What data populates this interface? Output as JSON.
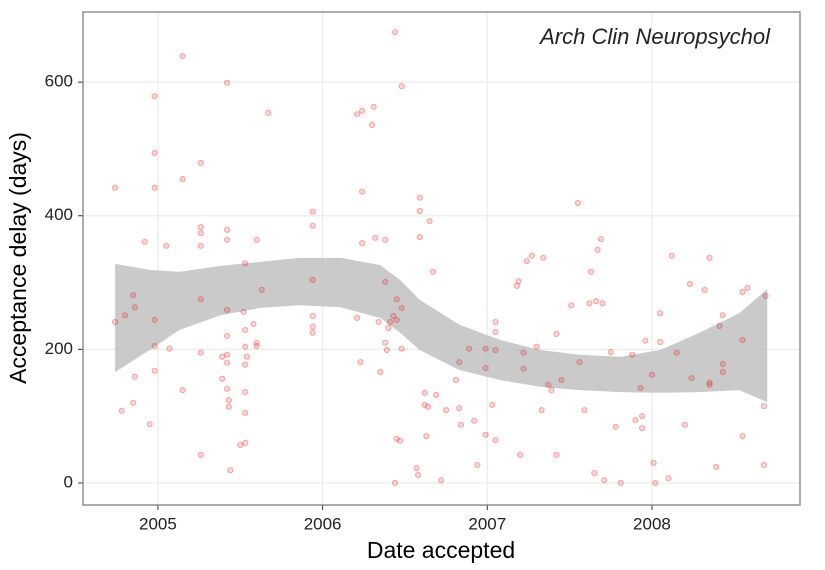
{
  "chart_data": {
    "type": "scatter",
    "annotation": "Arch Clin Neuropsychol",
    "x_label": "Date accepted",
    "y_label": "Acceptance delay (days)",
    "xlim": [
      2004.545,
      2008.899
    ],
    "ylim": [
      -33,
      705
    ],
    "xticks": [
      2005,
      2006,
      2007,
      2008
    ],
    "yticks": [
      0,
      200,
      400,
      600
    ],
    "grid": true,
    "color": "#e41a1c",
    "band_color": "#bdbdbd",
    "x": [
      2004.74,
      2004.74,
      2004.78,
      2004.8,
      2004.85,
      2004.86,
      2004.86,
      2004.85,
      2004.92,
      2004.95,
      2004.98,
      2004.98,
      2004.98,
      2004.98,
      2004.98,
      2004.98,
      2005.05,
      2005.07,
      2005.15,
      2005.15,
      2005.15,
      2005.26,
      2005.26,
      2005.26,
      2005.26,
      2005.26,
      2005.26,
      2005.26,
      2005.39,
      2005.39,
      2005.42,
      2005.42,
      2005.42,
      2005.42,
      2005.42,
      2005.42,
      2005.42,
      2005.42,
      2005.43,
      2005.43,
      2005.44,
      2005.5,
      2005.53,
      2005.52,
      2005.53,
      2005.53,
      2005.53,
      2005.53,
      2005.53,
      2005.53,
      2005.54,
      2005.58,
      2005.6,
      2005.6,
      2005.6,
      2005.63,
      2005.67,
      2005.94,
      2005.94,
      2005.94,
      2005.94,
      2005.94,
      2005.94,
      2006.21,
      2006.24,
      2006.24,
      2006.24,
      2006.21,
      2006.23,
      2006.3,
      2006.31,
      2006.32,
      2006.34,
      2006.35,
      2006.38,
      2006.38,
      2006.38,
      2006.39,
      2006.4,
      2006.41,
      2006.43,
      2006.44,
      2006.44,
      2006.45,
      2006.45,
      2006.45,
      2006.47,
      2006.48,
      2006.48,
      2006.48,
      2006.59,
      2006.59,
      2006.59,
      2006.57,
      2006.58,
      2006.62,
      2006.62,
      2006.63,
      2006.64,
      2006.65,
      2006.67,
      2006.69,
      2006.72,
      2006.75,
      2006.81,
      2006.83,
      2006.83,
      2006.84,
      2006.89,
      2006.92,
      2006.94,
      2006.99,
      2006.99,
      2006.99,
      2007.03,
      2007.05,
      2007.05,
      2007.05,
      2007.05,
      2007.18,
      2007.19,
      2007.2,
      2007.22,
      2007.22,
      2007.24,
      2007.27,
      2007.3,
      2007.33,
      2007.34,
      2007.37,
      2007.39,
      2007.42,
      2007.42,
      2007.45,
      2007.51,
      2007.55,
      2007.56,
      2007.59,
      2007.62,
      2007.63,
      2007.65,
      2007.66,
      2007.67,
      2007.69,
      2007.7,
      2007.71,
      2007.75,
      2007.78,
      2007.81,
      2007.88,
      2007.9,
      2007.93,
      2007.94,
      2007.94,
      2007.96,
      2008.0,
      2008.01,
      2008.02,
      2008.05,
      2008.05,
      2008.1,
      2008.12,
      2008.15,
      2008.2,
      2008.23,
      2008.24,
      2008.32,
      2008.35,
      2008.35,
      2008.35,
      2008.39,
      2008.41,
      2008.43,
      2008.43,
      2008.43,
      2008.55,
      2008.55,
      2008.55,
      2008.58,
      2008.68,
      2008.68,
      2008.69
    ],
    "values": [
      442,
      241,
      108,
      251,
      281,
      263,
      159,
      120,
      361,
      88,
      579,
      494,
      442,
      244,
      205,
      168,
      355,
      201,
      639,
      455,
      139,
      479,
      383,
      374,
      355,
      275,
      195,
      42,
      189,
      156,
      599,
      379,
      364,
      220,
      259,
      192,
      180,
      141,
      124,
      114,
      19,
      57,
      60,
      256,
      229,
      204,
      177,
      136,
      105,
      329,
      189,
      238,
      210,
      205,
      364,
      289,
      554,
      406,
      385,
      304,
      250,
      234,
      225,
      552,
      557,
      436,
      359,
      247,
      181,
      536,
      563,
      367,
      241,
      166,
      364,
      301,
      210,
      199,
      232,
      241,
      250,
      675,
      0,
      275,
      244,
      66,
      63,
      594,
      201,
      262,
      427,
      407,
      368,
      22,
      12,
      135,
      117,
      70,
      114,
      392,
      316,
      132,
      4,
      109,
      154,
      112,
      181,
      87,
      201,
      93,
      27,
      72,
      201,
      172,
      117,
      64,
      241,
      226,
      199,
      295,
      302,
      42,
      195,
      171,
      332,
      340,
      204,
      109,
      337,
      147,
      139,
      223,
      42,
      154,
      266,
      419,
      181,
      109,
      269,
      316,
      15,
      272,
      349,
      365,
      269,
      4,
      196,
      84,
      0,
      192,
      94,
      142,
      82,
      100,
      213,
      162,
      30,
      0,
      211,
      254,
      7,
      340,
      195,
      87,
      298,
      157,
      289,
      150,
      337,
      147,
      24,
      235,
      251,
      178,
      166,
      70,
      214,
      286,
      292,
      27,
      115,
      280
    ],
    "band": {
      "x": [
        2004.74,
        2004.95,
        2005.13,
        2005.38,
        2005.62,
        2005.86,
        2006.11,
        2006.35,
        2006.47,
        2006.59,
        2006.83,
        2007.08,
        2007.32,
        2007.56,
        2007.81,
        2008.05,
        2008.29,
        2008.53,
        2008.7
      ],
      "upper": [
        328,
        319,
        316,
        325,
        331,
        337,
        337,
        326,
        304,
        274,
        237,
        214,
        199,
        192,
        189,
        199,
        225,
        254,
        290
      ],
      "lower": [
        166,
        199,
        229,
        251,
        262,
        266,
        263,
        247,
        225,
        199,
        169,
        154,
        144,
        139,
        136,
        135,
        136,
        139,
        121
      ]
    }
  }
}
